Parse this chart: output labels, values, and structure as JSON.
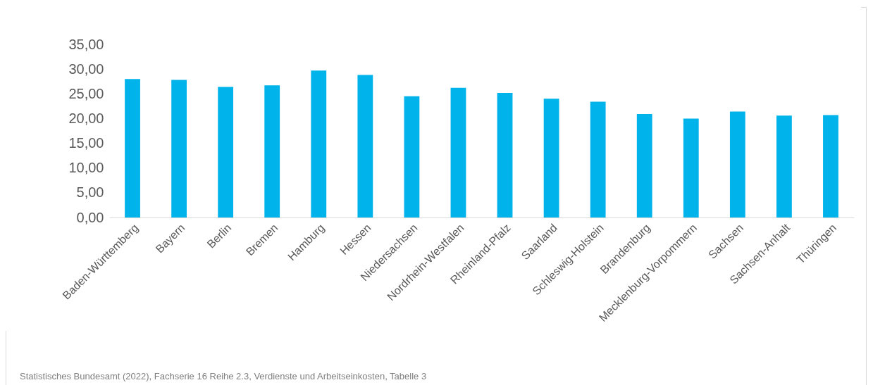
{
  "chart_data": {
    "type": "bar",
    "categories": [
      "Baden-Württemberg",
      "Bayern",
      "Berlin",
      "Bremen",
      "Hamburg",
      "Hessen",
      "Niedersachsen",
      "Nordrhein-Westfalen",
      "Rheinland-Pfalz",
      "Saarland",
      "Schleswig-Holstein",
      "Brandenburg",
      "Mecklenburg-Vorpommern",
      "Sachsen",
      "Sachsen-Anhalt",
      "Thüringen"
    ],
    "values": [
      28.0,
      27.8,
      26.4,
      26.7,
      29.7,
      28.8,
      24.5,
      26.2,
      25.2,
      24.0,
      23.4,
      20.9,
      20.0,
      21.4,
      20.6,
      20.7
    ],
    "color": "#00b4eb",
    "ylim": [
      0,
      35
    ],
    "yticks": [
      {
        "value": 0,
        "label": "0,00"
      },
      {
        "value": 5,
        "label": "5,00"
      },
      {
        "value": 10,
        "label": "10,00"
      },
      {
        "value": 15,
        "label": "15,00"
      },
      {
        "value": 20,
        "label": "20,00"
      },
      {
        "value": 25,
        "label": "25,00"
      },
      {
        "value": 30,
        "label": "30,00"
      },
      {
        "value": 35,
        "label": "35,00"
      }
    ],
    "grid": false,
    "annotations": [
      "Statistisches Bundesamt (2022), Fachserie 16 Reihe 2.3, Verdienste und Arbeitseinkosten, Tabelle 3"
    ]
  }
}
